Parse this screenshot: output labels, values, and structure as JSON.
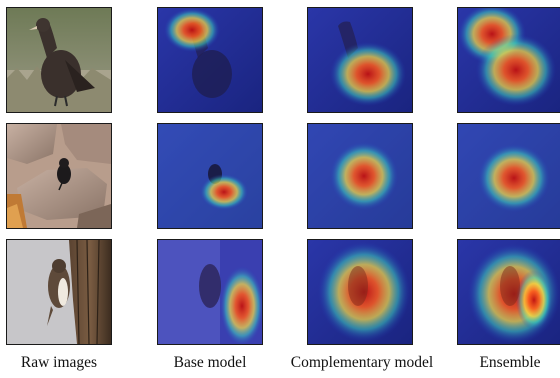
{
  "figure": {
    "columns": [
      {
        "label": "Raw images"
      },
      {
        "label": "Base model"
      },
      {
        "label": "Complementary model"
      },
      {
        "label": "Ensemble"
      }
    ]
  }
}
